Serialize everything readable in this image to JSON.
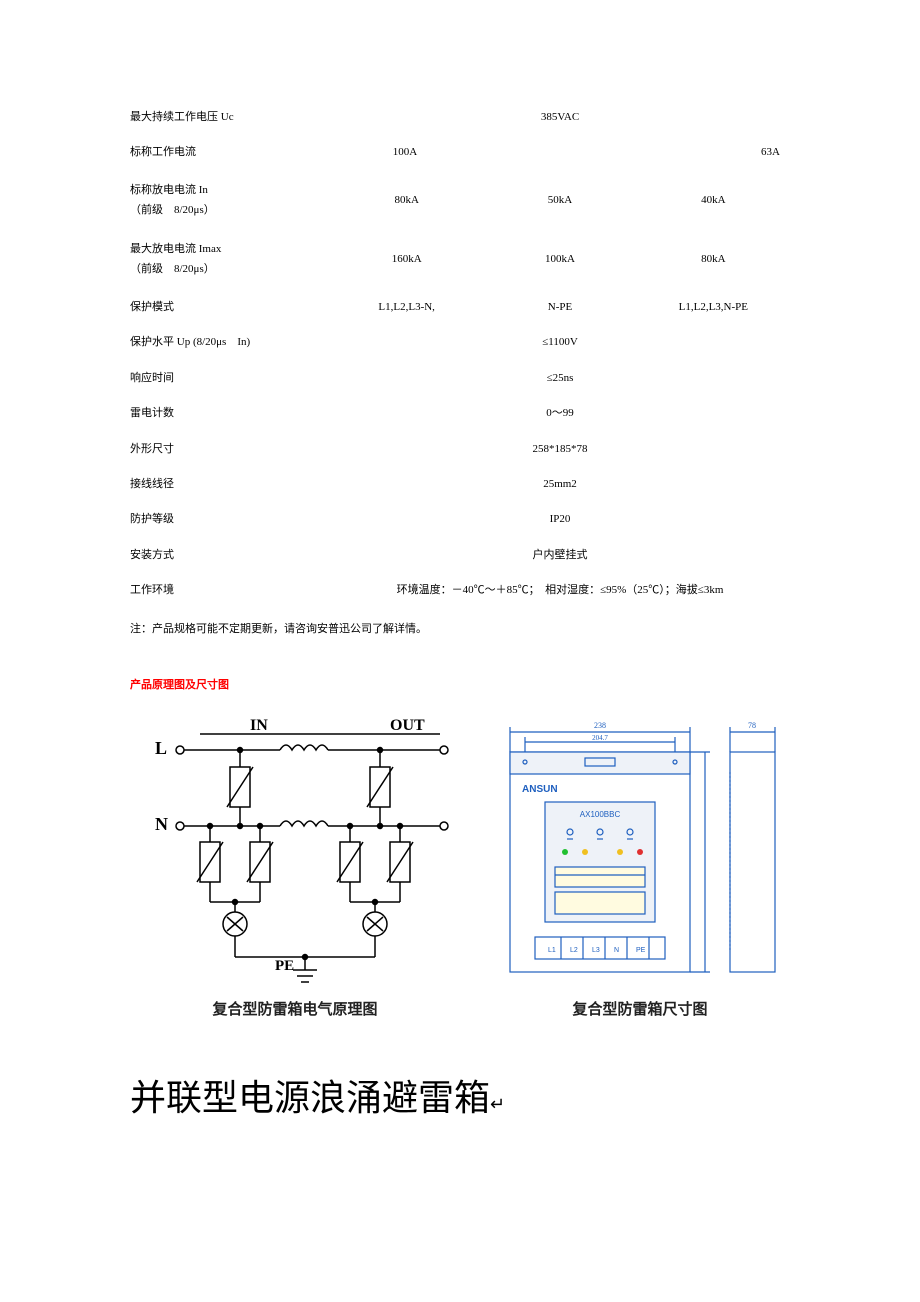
{
  "specs": {
    "rows": [
      {
        "label": "最大持续工作电压 Uc",
        "values": [
          "385VAC"
        ],
        "layout": "single"
      },
      {
        "label": "标称工作电流",
        "values": [
          "100A",
          "",
          "63A"
        ],
        "layout": "three-skew"
      },
      {
        "label": "标称放电电流 In",
        "sublabel": "（前级　8/20μs）",
        "values": [
          "80kA",
          "50kA",
          "40kA"
        ],
        "layout": "three"
      },
      {
        "label": "最大放电电流 Imax",
        "sublabel": "（前级　8/20μs）",
        "values": [
          "160kA",
          "100kA",
          "80kA"
        ],
        "layout": "three"
      },
      {
        "label": "保护模式",
        "values": [
          "L1,L2,L3-N,",
          "N-PE",
          "L1,L2,L3,N-PE"
        ],
        "layout": "three"
      },
      {
        "label": "保护水平 Up (8/20μs　In)",
        "values": [
          "≤1100V"
        ],
        "layout": "single"
      },
      {
        "label": "响应时间",
        "values": [
          "≤25ns"
        ],
        "layout": "single"
      },
      {
        "label": "雷电计数",
        "values": [
          "0～99"
        ],
        "layout": "single"
      },
      {
        "label": "外形尺寸",
        "values": [
          "258*185*78"
        ],
        "layout": "single"
      },
      {
        "label": "接线线径",
        "values": [
          "25mm2"
        ],
        "layout": "single"
      },
      {
        "label": "防护等级",
        "values": [
          "IP20"
        ],
        "layout": "single"
      },
      {
        "label": "安装方式",
        "values": [
          "户内壁挂式"
        ],
        "layout": "single"
      },
      {
        "label": "工作环境",
        "values": [
          "环境温度：－40℃～＋85℃；　相对湿度：≤95%（25℃）；海拔≤3km"
        ],
        "layout": "single"
      }
    ],
    "note": "注：产品规格可能不定期更新，请咨询安普迅公司了解详情。"
  },
  "diagrams": {
    "section_title": "产品原理图及尺寸图",
    "circuit": {
      "caption": "复合型防雷箱电气原理图",
      "labels": {
        "L": "L",
        "N": "N",
        "PE": "PE",
        "IN": "IN",
        "OUT": "OUT"
      },
      "line_color": "#000000",
      "bg": "#ffffff"
    },
    "dimension": {
      "caption": "复合型防雷箱尺寸图",
      "brand": "ANSUN",
      "model": "AX100BBC",
      "dim_w": "238",
      "dim_w_inner": "204.7",
      "dim_d": "78",
      "terminals": [
        "L1",
        "L2",
        "L3",
        "N",
        "PE"
      ],
      "line_color": "#1e5fbf",
      "panel_fill": "#eef2f8"
    }
  },
  "heading": "并联型电源浪涌避雷箱",
  "heading_suffix": "↵"
}
